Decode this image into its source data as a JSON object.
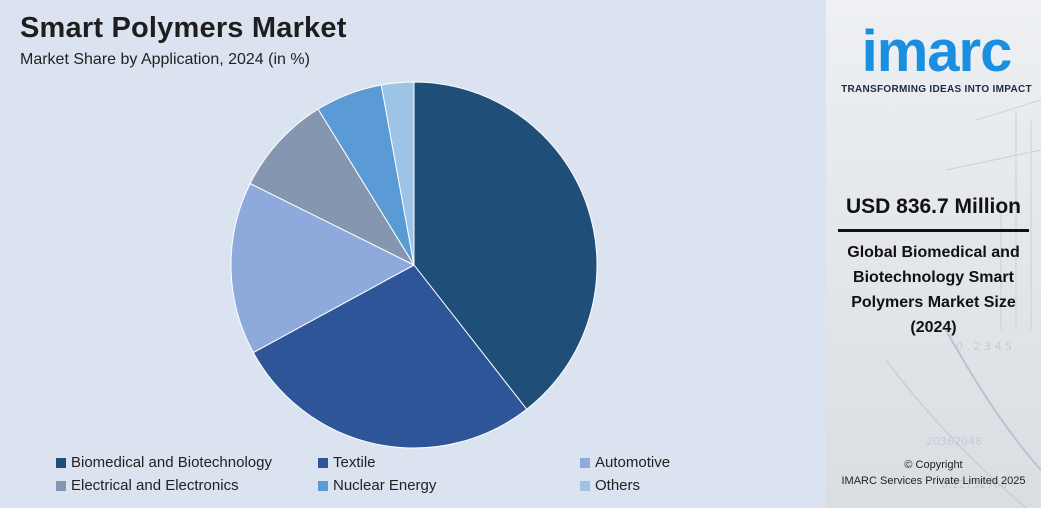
{
  "title": "Smart Polymers Market",
  "subtitle": "Market Share by Application, 2024 (in %)",
  "chart_data": {
    "type": "pie",
    "title": "Smart Polymers Market",
    "subtitle": "Market Share by Application, 2024 (in %)",
    "start_angle_deg": 0,
    "direction": "clockwise",
    "legend_position": "bottom",
    "slices": [
      {
        "label": "Biomedical and Biotechnology",
        "value": 40.0,
        "color": "#1f4e79"
      },
      {
        "label": "Textile",
        "value": 28.0,
        "color": "#2e5597"
      },
      {
        "label": "Automotive",
        "value": 15.5,
        "color": "#8ea9db"
      },
      {
        "label": "Electrical and Electronics",
        "value": 9.0,
        "color": "#8496b0"
      },
      {
        "label": "Nuclear Energy",
        "value": 6.0,
        "color": "#5b9bd5"
      },
      {
        "label": "Others",
        "value": 2.9,
        "color": "#9dc3e6"
      }
    ]
  },
  "brand": {
    "logo_text": "imarc",
    "tagline": "TRANSFORMING IDEAS INTO IMPACT",
    "logo_color": "#1a8fe0"
  },
  "highlight": {
    "value": "USD 836.7 Million",
    "description": "Global Biomedical and Biotechnology Smart Polymers Market Size (2024)"
  },
  "copyright": {
    "line1": "© Copyright",
    "line2": "IMARC Services Private Limited 2025"
  }
}
